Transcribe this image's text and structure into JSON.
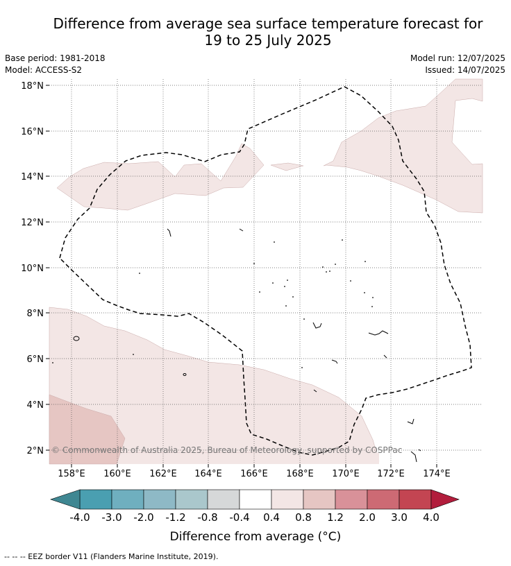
{
  "title_line1": "Difference from average sea surface temperature forecast for",
  "title_line2": "19 to 25 July 2025",
  "meta": {
    "base_period": "Base period: 1981-2018",
    "model": "Model: ACCESS-S2",
    "model_run": "Model run: 12/07/2025",
    "issued": "Issued: 14/07/2025"
  },
  "axes": {
    "lon_labels": [
      "158°E",
      "160°E",
      "162°E",
      "164°E",
      "166°E",
      "168°E",
      "170°E",
      "172°E",
      "174°E"
    ],
    "lat_labels": [
      "18°N",
      "16°N",
      "14°N",
      "12°N",
      "10°N",
      "8°N",
      "6°N",
      "4°N",
      "2°N"
    ]
  },
  "copyright": "© Commonwealth of Australia 2025, Bureau of Meteorology, supported by COSPPac",
  "colorbar": {
    "title": "Difference from average (°C)",
    "tick_labels": [
      "-4.0",
      "-3.0",
      "-2.0",
      "-1.2",
      "-0.8",
      "-0.4",
      "0.4",
      "0.8",
      "1.2",
      "2.0",
      "3.0",
      "4.0"
    ],
    "colors": [
      "#4a9fb1",
      "#6fafbf",
      "#8eb9c6",
      "#aac7cc",
      "#d6d8d9",
      "#ffffff",
      "#f3e6e5",
      "#e6c6c3",
      "#d99199",
      "#cd6a74",
      "#c34552"
    ],
    "under_color": "#3f8792",
    "over_color": "#b21d3c"
  },
  "legend_note": "-- -- -- EEZ border V11 (Flanders Marine Institute, 2019)."
}
